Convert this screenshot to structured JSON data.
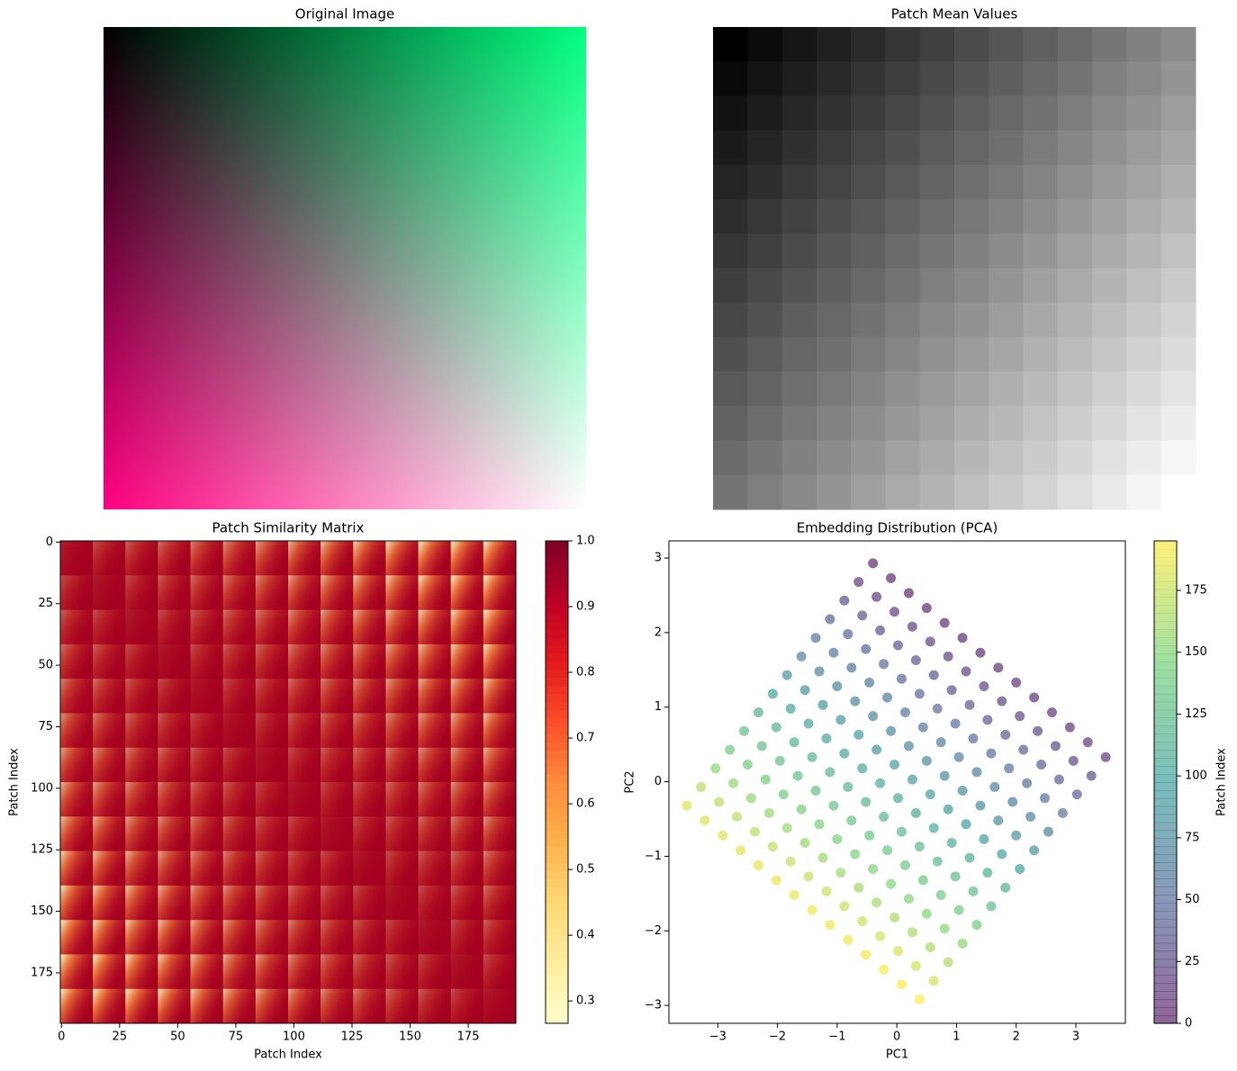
{
  "chart_data": [
    {
      "type": "image",
      "title": "Original Image"
    },
    {
      "type": "heatmap",
      "title": "Patch Mean Values",
      "colormap": "gray",
      "values": [
        [
          0,
          0.042,
          0.084,
          0.126,
          0.168,
          0.21,
          0.252,
          0.294,
          0.336,
          0.378,
          0.42,
          0.462,
          0.504,
          0.546
        ],
        [
          0.035,
          0.077,
          0.119,
          0.161,
          0.203,
          0.245,
          0.287,
          0.329,
          0.371,
          0.413,
          0.455,
          0.497,
          0.539,
          0.581
        ],
        [
          0.07,
          0.112,
          0.154,
          0.196,
          0.238,
          0.28,
          0.322,
          0.364,
          0.406,
          0.448,
          0.49,
          0.532,
          0.574,
          0.616
        ],
        [
          0.105,
          0.147,
          0.189,
          0.231,
          0.273,
          0.315,
          0.357,
          0.399,
          0.441,
          0.483,
          0.525,
          0.567,
          0.609,
          0.651
        ],
        [
          0.14,
          0.182,
          0.224,
          0.266,
          0.308,
          0.35,
          0.392,
          0.434,
          0.476,
          0.518,
          0.56,
          0.602,
          0.644,
          0.686
        ],
        [
          0.175,
          0.217,
          0.259,
          0.301,
          0.343,
          0.385,
          0.427,
          0.469,
          0.511,
          0.553,
          0.595,
          0.637,
          0.679,
          0.721
        ],
        [
          0.21,
          0.252,
          0.294,
          0.336,
          0.378,
          0.42,
          0.462,
          0.504,
          0.546,
          0.588,
          0.63,
          0.672,
          0.714,
          0.756
        ],
        [
          0.245,
          0.287,
          0.329,
          0.371,
          0.413,
          0.455,
          0.497,
          0.539,
          0.581,
          0.623,
          0.665,
          0.707,
          0.749,
          0.791
        ],
        [
          0.28,
          0.322,
          0.364,
          0.406,
          0.448,
          0.49,
          0.532,
          0.574,
          0.616,
          0.658,
          0.7,
          0.742,
          0.784,
          0.826
        ],
        [
          0.315,
          0.357,
          0.399,
          0.441,
          0.483,
          0.525,
          0.567,
          0.609,
          0.651,
          0.693,
          0.735,
          0.777,
          0.819,
          0.861
        ],
        [
          0.35,
          0.392,
          0.434,
          0.476,
          0.518,
          0.56,
          0.602,
          0.644,
          0.686,
          0.728,
          0.77,
          0.812,
          0.854,
          0.896
        ],
        [
          0.385,
          0.427,
          0.469,
          0.511,
          0.553,
          0.595,
          0.637,
          0.679,
          0.721,
          0.763,
          0.805,
          0.847,
          0.889,
          0.931
        ],
        [
          0.42,
          0.462,
          0.504,
          0.546,
          0.588,
          0.63,
          0.672,
          0.714,
          0.756,
          0.798,
          0.84,
          0.882,
          0.924,
          0.966
        ],
        [
          0.455,
          0.497,
          0.539,
          0.581,
          0.623,
          0.665,
          0.707,
          0.749,
          0.791,
          0.833,
          0.875,
          0.917,
          0.959,
          1.0
        ]
      ]
    },
    {
      "type": "heatmap",
      "title": "Patch Similarity Matrix",
      "xlabel": "Patch Index",
      "ylabel": "Patch Index",
      "xlim": [
        -0.5,
        195.5
      ],
      "ylim": [
        195.5,
        -0.5
      ],
      "xticks": [
        0,
        25,
        50,
        75,
        100,
        125,
        150,
        175
      ],
      "yticks": [
        0,
        25,
        50,
        75,
        100,
        125,
        150,
        175
      ],
      "colorbar": {
        "colormap": "YlOrRd",
        "lim": [
          0.266,
          1.0
        ],
        "ticks": [
          0.3,
          0.4,
          0.5,
          0.6,
          0.7,
          0.8,
          0.9,
          {
            "value": 1,
            "label": "1.0"
          }
        ]
      }
    },
    {
      "type": "scatter",
      "title": "Embedding Distribution (PCA)",
      "xlabel": "PC1",
      "ylabel": "PC2",
      "alpha": 0.6,
      "xlim": [
        -3.82,
        3.83
      ],
      "ylim": [
        -3.24,
        3.23
      ],
      "xticks": [
        {
          "value": -3,
          "label": "−3"
        },
        {
          "value": -2,
          "label": "−2"
        },
        {
          "value": -1,
          "label": "−1"
        },
        0,
        1,
        2,
        3
      ],
      "yticks": [
        {
          "value": -3,
          "label": "−3"
        },
        {
          "value": -2,
          "label": "−2"
        },
        {
          "value": -1,
          "label": "−1"
        },
        0,
        1,
        2,
        3
      ],
      "colorbar": {
        "colormap": "viridis",
        "label": "Patch Index",
        "lim": [
          0,
          195
        ],
        "ticks": [
          0,
          25,
          50,
          75,
          100,
          125,
          150,
          175
        ]
      },
      "x": [
        -0.4,
        -0.1,
        0.2,
        0.5,
        0.8,
        1.1,
        1.4,
        1.7,
        2.0,
        2.3,
        2.6,
        2.9,
        3.2,
        3.5,
        -0.64,
        -0.34,
        -0.04,
        0.26,
        0.56,
        0.86,
        1.16,
        1.46,
        1.76,
        2.06,
        2.36,
        2.66,
        2.96,
        3.26,
        -0.88,
        -0.58,
        -0.28,
        0.02,
        0.32,
        0.62,
        0.92,
        1.22,
        1.52,
        1.82,
        2.12,
        2.42,
        2.72,
        3.02,
        -1.12,
        -0.82,
        -0.52,
        -0.22,
        0.08,
        0.38,
        0.68,
        0.98,
        1.28,
        1.58,
        1.88,
        2.18,
        2.48,
        2.78,
        -1.36,
        -1.06,
        -0.76,
        -0.46,
        -0.16,
        0.14,
        0.44,
        0.74,
        1.04,
        1.34,
        1.64,
        1.94,
        2.24,
        2.54,
        -1.6,
        -1.3,
        -1.0,
        -0.7,
        -0.4,
        -0.1,
        0.2,
        0.5,
        0.8,
        1.1,
        1.4,
        1.7,
        2.0,
        2.3,
        -1.84,
        -1.54,
        -1.24,
        -0.94,
        -0.64,
        -0.34,
        -0.04,
        0.26,
        0.56,
        0.86,
        1.16,
        1.46,
        1.76,
        2.06,
        -2.08,
        -1.78,
        -1.48,
        -1.18,
        -0.88,
        -0.58,
        -0.28,
        0.02,
        0.32,
        0.62,
        0.92,
        1.22,
        1.52,
        1.82,
        -2.32,
        -2.02,
        -1.72,
        -1.42,
        -1.12,
        -0.82,
        -0.52,
        -0.22,
        0.08,
        0.38,
        0.68,
        0.98,
        1.28,
        1.58,
        -2.56,
        -2.26,
        -1.96,
        -1.66,
        -1.36,
        -1.06,
        -0.76,
        -0.46,
        -0.16,
        0.14,
        0.44,
        0.74,
        1.04,
        1.34,
        -2.8,
        -2.5,
        -2.2,
        -1.9,
        -1.6,
        -1.3,
        -1.0,
        -0.7,
        -0.4,
        -0.1,
        0.2,
        0.5,
        0.8,
        1.1,
        -3.04,
        -2.74,
        -2.44,
        -2.14,
        -1.84,
        -1.54,
        -1.24,
        -0.94,
        -0.64,
        -0.34,
        -0.04,
        0.26,
        0.56,
        0.86,
        -3.28,
        -2.98,
        -2.68,
        -2.38,
        -2.08,
        -1.78,
        -1.48,
        -1.18,
        -0.88,
        -0.58,
        -0.28,
        0.02,
        0.32,
        0.62,
        -3.52,
        -3.22,
        -2.92,
        -2.62,
        -2.32,
        -2.02,
        -1.72,
        -1.42,
        -1.12,
        -0.82,
        -0.52,
        -0.22,
        0.08,
        0.38
      ],
      "y": [
        2.93,
        2.73,
        2.53,
        2.33,
        2.13,
        1.93,
        1.73,
        1.53,
        1.33,
        1.13,
        0.93,
        0.73,
        0.53,
        0.33,
        2.68,
        2.48,
        2.28,
        2.08,
        1.88,
        1.68,
        1.48,
        1.28,
        1.08,
        0.88,
        0.68,
        0.48,
        0.28,
        0.08,
        2.43,
        2.23,
        2.03,
        1.83,
        1.63,
        1.43,
        1.23,
        1.03,
        0.83,
        0.63,
        0.43,
        0.23,
        0.03,
        -0.17,
        2.18,
        1.98,
        1.78,
        1.58,
        1.38,
        1.18,
        0.98,
        0.78,
        0.58,
        0.38,
        0.18,
        -0.02,
        -0.22,
        -0.42,
        1.93,
        1.73,
        1.53,
        1.33,
        1.13,
        0.93,
        0.73,
        0.53,
        0.33,
        0.13,
        -0.07,
        -0.27,
        -0.47,
        -0.67,
        1.68,
        1.48,
        1.28,
        1.08,
        0.88,
        0.68,
        0.48,
        0.28,
        0.08,
        -0.12,
        -0.32,
        -0.52,
        -0.72,
        -0.92,
        1.43,
        1.23,
        1.03,
        0.83,
        0.63,
        0.43,
        0.23,
        0.03,
        -0.17,
        -0.37,
        -0.57,
        -0.77,
        -0.97,
        -1.17,
        1.18,
        0.98,
        0.78,
        0.58,
        0.38,
        0.18,
        -0.02,
        -0.22,
        -0.42,
        -0.62,
        -0.82,
        -1.02,
        -1.22,
        -1.42,
        0.93,
        0.73,
        0.53,
        0.33,
        0.13,
        -0.07,
        -0.27,
        -0.47,
        -0.67,
        -0.87,
        -1.07,
        -1.27,
        -1.47,
        -1.67,
        0.68,
        0.48,
        0.28,
        0.08,
        -0.12,
        -0.32,
        -0.52,
        -0.72,
        -0.92,
        -1.12,
        -1.32,
        -1.52,
        -1.72,
        -1.92,
        0.43,
        0.23,
        0.03,
        -0.17,
        -0.37,
        -0.57,
        -0.77,
        -0.97,
        -1.17,
        -1.37,
        -1.57,
        -1.77,
        -1.97,
        -2.17,
        0.18,
        -0.02,
        -0.22,
        -0.42,
        -0.62,
        -0.82,
        -1.02,
        -1.22,
        -1.42,
        -1.62,
        -1.82,
        -2.02,
        -2.22,
        -2.42,
        -0.07,
        -0.27,
        -0.47,
        -0.67,
        -0.87,
        -1.07,
        -1.27,
        -1.47,
        -1.67,
        -1.87,
        -2.07,
        -2.27,
        -2.47,
        -2.67,
        -0.32,
        -0.52,
        -0.72,
        -0.92,
        -1.12,
        -1.32,
        -1.52,
        -1.72,
        -1.92,
        -2.12,
        -2.32,
        -2.52,
        -2.72,
        -2.92
      ]
    }
  ]
}
